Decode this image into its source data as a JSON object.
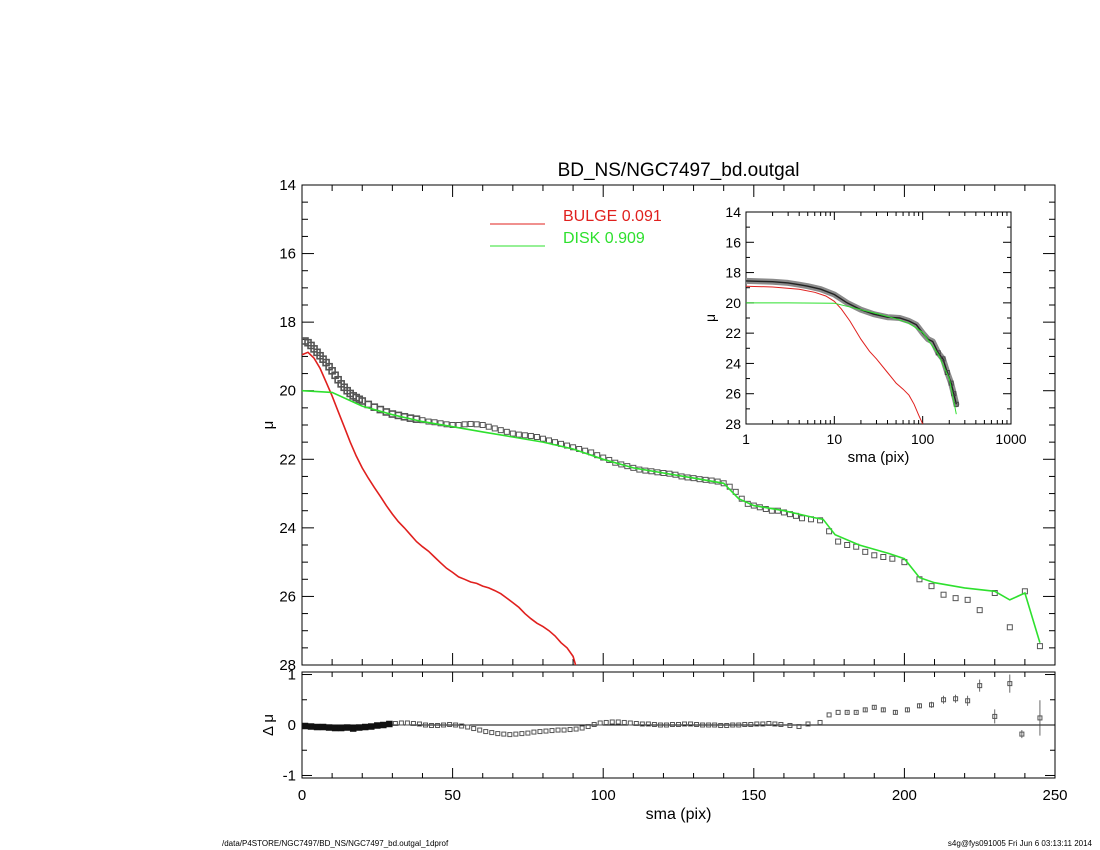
{
  "chart_data": [
    {
      "type": "scatter",
      "panel": "main",
      "title": "BD_NS/NGC7497_bd.outgal",
      "xlabel": "",
      "ylabel": "μ",
      "xlim": [
        0,
        250
      ],
      "ylim": [
        28,
        14
      ],
      "y_reversed": true,
      "y_ticks": [
        "14",
        "16",
        "18",
        "20",
        "22",
        "24",
        "26",
        "28"
      ],
      "legend": {
        "placement": "top-center",
        "entries": [
          {
            "label": "BULGE",
            "value": "0.091",
            "color": "#e0201e"
          },
          {
            "label": "DISK",
            "value": "0.909",
            "color": "#2ee02e"
          }
        ]
      },
      "series": [
        {
          "name": "data",
          "style": "open-square",
          "color": "#555555",
          "x": [
            1,
            2,
            3,
            4,
            5,
            6,
            7,
            8,
            9,
            10,
            11,
            12,
            13,
            14,
            15,
            16,
            17,
            18,
            19,
            20,
            22,
            24,
            26,
            28,
            30,
            32,
            34,
            36,
            38,
            40,
            42,
            44,
            46,
            48,
            50,
            52,
            54,
            56,
            58,
            60,
            62,
            64,
            66,
            68,
            70,
            72,
            74,
            76,
            78,
            80,
            82,
            84,
            86,
            88,
            90,
            92,
            94,
            96,
            98,
            100,
            102,
            104,
            106,
            108,
            110,
            112,
            114,
            116,
            118,
            120,
            122,
            124,
            126,
            128,
            130,
            132,
            134,
            136,
            138,
            140,
            142,
            144,
            146,
            148,
            150,
            152,
            154,
            156,
            158,
            160,
            162,
            164,
            166,
            169,
            172,
            175,
            178,
            181,
            184,
            187,
            190,
            193,
            196,
            200,
            205,
            209,
            213,
            217,
            221,
            225,
            230,
            235,
            240,
            245
          ],
          "y": [
            18.55,
            18.6,
            18.68,
            18.78,
            18.88,
            18.98,
            19.08,
            19.18,
            19.3,
            19.42,
            19.55,
            19.68,
            19.8,
            19.9,
            20.0,
            20.08,
            20.15,
            20.2,
            20.25,
            20.3,
            20.4,
            20.48,
            20.55,
            20.62,
            20.68,
            20.72,
            20.76,
            20.8,
            20.83,
            20.86,
            20.9,
            20.92,
            20.95,
            20.98,
            21.0,
            21.0,
            20.98,
            20.97,
            20.98,
            21.0,
            21.05,
            21.1,
            21.15,
            21.2,
            21.25,
            21.28,
            21.3,
            21.32,
            21.35,
            21.4,
            21.45,
            21.5,
            21.55,
            21.6,
            21.65,
            21.7,
            21.75,
            21.8,
            21.88,
            21.95,
            22.02,
            22.1,
            22.15,
            22.2,
            22.25,
            22.3,
            22.33,
            22.35,
            22.38,
            22.4,
            22.42,
            22.45,
            22.5,
            22.53,
            22.55,
            22.58,
            22.6,
            22.62,
            22.65,
            22.7,
            22.8,
            22.95,
            23.15,
            23.3,
            23.35,
            23.4,
            23.45,
            23.5,
            23.5,
            23.55,
            23.6,
            23.65,
            23.72,
            23.75,
            23.78,
            24.1,
            24.4,
            24.5,
            24.55,
            24.7,
            24.8,
            24.85,
            24.9,
            25.0,
            25.5,
            25.7,
            25.95,
            26.05,
            26.1,
            26.4,
            25.9,
            26.9,
            25.85,
            27.45
          ]
        },
        {
          "name": "BULGE",
          "style": "line",
          "color": "#e0201e",
          "x": [
            0,
            2,
            4,
            6,
            8,
            10,
            12,
            14,
            16,
            18,
            20,
            22,
            24,
            26,
            28,
            30,
            32,
            34,
            36,
            38,
            40,
            42,
            44,
            46,
            48,
            50,
            52,
            54,
            56,
            58,
            60,
            62,
            64,
            66,
            68,
            70,
            72,
            74,
            76,
            78,
            80,
            82,
            84,
            86,
            88,
            90,
            91
          ],
          "y": [
            18.95,
            18.88,
            19.05,
            19.35,
            19.75,
            20.15,
            20.6,
            21.05,
            21.5,
            21.9,
            22.25,
            22.55,
            22.82,
            23.08,
            23.35,
            23.6,
            23.82,
            24.0,
            24.2,
            24.4,
            24.55,
            24.68,
            24.85,
            25.02,
            25.18,
            25.3,
            25.43,
            25.5,
            25.58,
            25.62,
            25.7,
            25.75,
            25.83,
            25.92,
            26.05,
            26.18,
            26.32,
            26.5,
            26.65,
            26.78,
            26.88,
            27.0,
            27.15,
            27.35,
            27.5,
            27.75,
            28.05
          ]
        },
        {
          "name": "DISK",
          "style": "line",
          "color": "#2ee02e",
          "x": [
            0,
            10,
            20,
            30,
            40,
            50,
            60,
            70,
            80,
            90,
            100,
            110,
            120,
            130,
            140,
            145,
            150,
            160,
            165,
            170,
            173,
            177,
            185,
            195,
            200,
            205,
            210,
            220,
            230,
            235,
            240,
            245
          ],
          "y": [
            20.0,
            20.05,
            20.45,
            20.7,
            20.9,
            21.05,
            21.2,
            21.35,
            21.5,
            21.7,
            22.0,
            22.25,
            22.4,
            22.55,
            22.7,
            23.15,
            23.35,
            23.5,
            23.6,
            23.7,
            23.75,
            24.2,
            24.5,
            24.75,
            24.9,
            25.45,
            25.6,
            25.75,
            25.85,
            26.1,
            25.9,
            27.35
          ]
        }
      ]
    },
    {
      "type": "line",
      "panel": "inset",
      "xlabel": "sma (pix)",
      "ylabel": "μ",
      "x_scale": "log",
      "xlim": [
        1,
        1000
      ],
      "ylim": [
        28,
        14
      ],
      "y_reversed": true,
      "x_ticks": [
        "1",
        "10",
        "100",
        "1000"
      ],
      "y_ticks": [
        "14",
        "16",
        "18",
        "20",
        "22",
        "24",
        "26",
        "28"
      ],
      "series": [
        {
          "name": "data",
          "style": "thick-line-with-markers",
          "color": "#555555",
          "x": [
            1,
            1.5,
            2,
            3,
            4,
            5,
            7,
            10,
            14,
            20,
            28,
            40,
            55,
            70,
            85,
            100,
            115,
            130,
            150,
            170,
            190,
            210,
            225,
            240
          ],
          "y": [
            18.55,
            18.58,
            18.6,
            18.68,
            18.8,
            18.9,
            19.1,
            19.45,
            20.0,
            20.45,
            20.75,
            20.95,
            21.0,
            21.2,
            21.45,
            22.0,
            22.4,
            22.55,
            23.3,
            23.7,
            24.6,
            25.3,
            26.0,
            26.7
          ]
        },
        {
          "name": "BULGE",
          "style": "line",
          "color": "#e0201e",
          "x": [
            1,
            2,
            4,
            6,
            8,
            10,
            12,
            15,
            20,
            25,
            30,
            40,
            50,
            60,
            70,
            80,
            90,
            100
          ],
          "y": [
            18.9,
            18.95,
            19.1,
            19.3,
            19.55,
            19.9,
            20.4,
            21.2,
            22.4,
            23.2,
            23.7,
            24.6,
            25.3,
            25.7,
            26.1,
            26.7,
            27.4,
            28.0
          ]
        },
        {
          "name": "DISK",
          "style": "line",
          "color": "#2ee02e",
          "x": [
            1,
            3,
            10,
            20,
            30,
            50,
            70,
            100,
            150,
            200,
            240
          ],
          "y": [
            20.0,
            20.0,
            20.02,
            20.45,
            20.7,
            21.05,
            21.35,
            21.95,
            23.4,
            25.0,
            27.35
          ]
        }
      ]
    },
    {
      "type": "scatter",
      "panel": "residual",
      "xlabel": "sma (pix)",
      "ylabel": "Δ μ",
      "xlim": [
        0,
        250
      ],
      "ylim": [
        -1.05,
        1.05
      ],
      "x_ticks": [
        "0",
        "50",
        "100",
        "150",
        "200",
        "250"
      ],
      "y_ticks": [
        "1",
        "0",
        "-1"
      ],
      "zero_line": true,
      "series": [
        {
          "name": "residual",
          "style": "open-square-with-errorbars",
          "color": "#555555",
          "x": [
            1,
            3,
            5,
            7,
            9,
            11,
            13,
            15,
            17,
            19,
            21,
            23,
            25,
            27,
            29,
            31,
            33,
            35,
            37,
            39,
            41,
            43,
            45,
            47,
            49,
            51,
            53,
            55,
            57,
            59,
            61,
            63,
            65,
            67,
            69,
            71,
            73,
            75,
            77,
            79,
            81,
            83,
            85,
            87,
            89,
            91,
            93,
            95,
            97,
            99,
            101,
            103,
            105,
            107,
            109,
            111,
            113,
            115,
            117,
            119,
            121,
            123,
            125,
            127,
            129,
            131,
            133,
            135,
            137,
            139,
            141,
            143,
            145,
            147,
            149,
            151,
            153,
            155,
            157,
            159,
            162,
            165,
            168,
            172,
            175,
            178,
            181,
            184,
            187,
            190,
            193,
            197,
            201,
            205,
            209,
            213,
            217,
            221,
            225,
            230,
            235,
            239,
            245
          ],
          "y": [
            -0.02,
            -0.03,
            -0.04,
            -0.04,
            -0.05,
            -0.06,
            -0.06,
            -0.05,
            -0.07,
            -0.05,
            -0.04,
            -0.03,
            -0.01,
            0.0,
            0.02,
            0.03,
            0.04,
            0.04,
            0.03,
            0.02,
            0.0,
            -0.01,
            -0.01,
            0.0,
            0.01,
            0.0,
            -0.02,
            -0.04,
            -0.07,
            -0.1,
            -0.13,
            -0.15,
            -0.17,
            -0.18,
            -0.19,
            -0.18,
            -0.17,
            -0.16,
            -0.14,
            -0.13,
            -0.12,
            -0.11,
            -0.1,
            -0.1,
            -0.09,
            -0.08,
            -0.06,
            -0.03,
            0.01,
            0.04,
            0.05,
            0.06,
            0.06,
            0.05,
            0.04,
            0.03,
            0.02,
            0.02,
            0.01,
            0.0,
            0.0,
            0.01,
            0.01,
            0.02,
            0.02,
            0.01,
            0.0,
            0.0,
            0.0,
            -0.01,
            -0.01,
            0.0,
            0.0,
            0.01,
            0.01,
            0.02,
            0.02,
            0.03,
            0.02,
            0.01,
            -0.01,
            -0.03,
            0.02,
            0.05,
            0.2,
            0.25,
            0.25,
            0.25,
            0.3,
            0.35,
            0.3,
            0.25,
            0.3,
            0.38,
            0.4,
            0.5,
            0.52,
            0.48,
            0.78,
            0.17,
            0.82,
            -0.18,
            0.14
          ],
          "yerr": [
            0,
            0,
            0,
            0,
            0,
            0,
            0,
            0,
            0,
            0,
            0,
            0,
            0,
            0,
            0,
            0,
            0,
            0,
            0,
            0,
            0,
            0,
            0,
            0,
            0,
            0,
            0,
            0,
            0,
            0,
            0,
            0,
            0,
            0,
            0,
            0,
            0,
            0,
            0,
            0,
            0,
            0,
            0,
            0,
            0,
            0,
            0,
            0,
            0,
            0,
            0,
            0,
            0,
            0,
            0,
            0,
            0,
            0,
            0,
            0,
            0,
            0,
            0,
            0,
            0,
            0,
            0,
            0,
            0,
            0,
            0,
            0,
            0,
            0,
            0,
            0,
            0,
            0,
            0,
            0,
            0,
            0,
            0,
            0,
            0,
            0,
            0.02,
            0.02,
            0.03,
            0.03,
            0.04,
            0.04,
            0.05,
            0.05,
            0.06,
            0.08,
            0.08,
            0.1,
            0.12,
            0.14,
            0.18,
            0.08,
            0.35
          ]
        }
      ]
    }
  ],
  "footer": {
    "left": "/data/P4STORE/NGC7497/BD_NS/NGC7497_bd.outgal_1dprof",
    "right": "s4g@fys091005  Fri Jun  6 03:13:11 2014"
  }
}
